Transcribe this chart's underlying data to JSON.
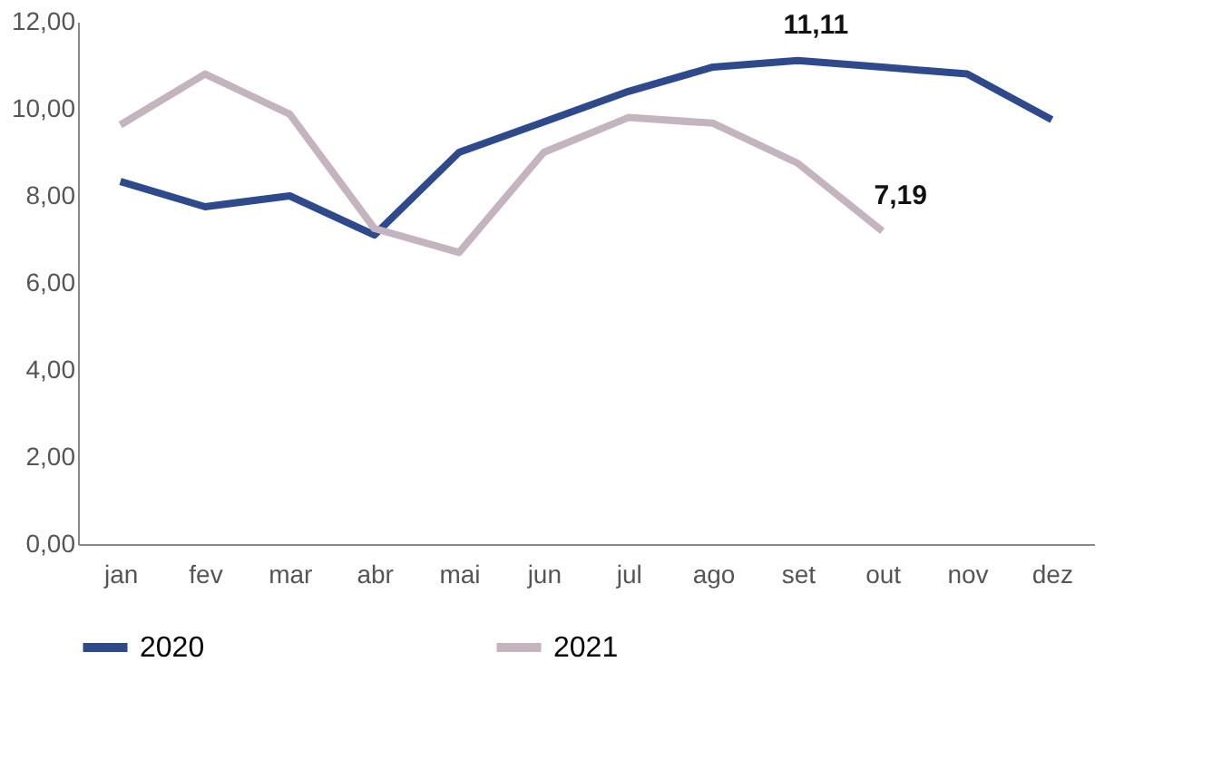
{
  "chart_data": {
    "type": "line",
    "categories": [
      "jan",
      "fev",
      "mar",
      "abr",
      "mai",
      "jun",
      "jul",
      "ago",
      "set",
      "out",
      "nov",
      "dez"
    ],
    "series": [
      {
        "name": "2020",
        "color": "#2e4a8c",
        "values": [
          8.33,
          7.75,
          8.0,
          7.1,
          9.0,
          9.7,
          10.4,
          10.96,
          11.11,
          10.96,
          10.8,
          9.75
        ],
        "value_labels": [
          null,
          null,
          null,
          null,
          null,
          null,
          null,
          null,
          "11,11",
          null,
          null,
          null
        ]
      },
      {
        "name": "2021",
        "color": "#c4b4c0",
        "values": [
          9.63,
          10.8,
          9.88,
          7.25,
          6.7,
          9.0,
          9.8,
          9.67,
          8.75,
          7.19,
          null,
          null
        ],
        "value_labels": [
          null,
          null,
          null,
          null,
          null,
          null,
          null,
          null,
          null,
          "7,19",
          null,
          null
        ]
      }
    ],
    "ylim": [
      0,
      12
    ],
    "yticks": [
      {
        "value": 0,
        "label": "0,00"
      },
      {
        "value": 2,
        "label": "2,00"
      },
      {
        "value": 4,
        "label": "4,00"
      },
      {
        "value": 6,
        "label": "6,00"
      },
      {
        "value": 8,
        "label": "8,00"
      },
      {
        "value": 10,
        "label": "10,00"
      },
      {
        "value": 12,
        "label": "12,00"
      }
    ],
    "grid": false,
    "legend": "bottom",
    "line_style": "solid"
  }
}
